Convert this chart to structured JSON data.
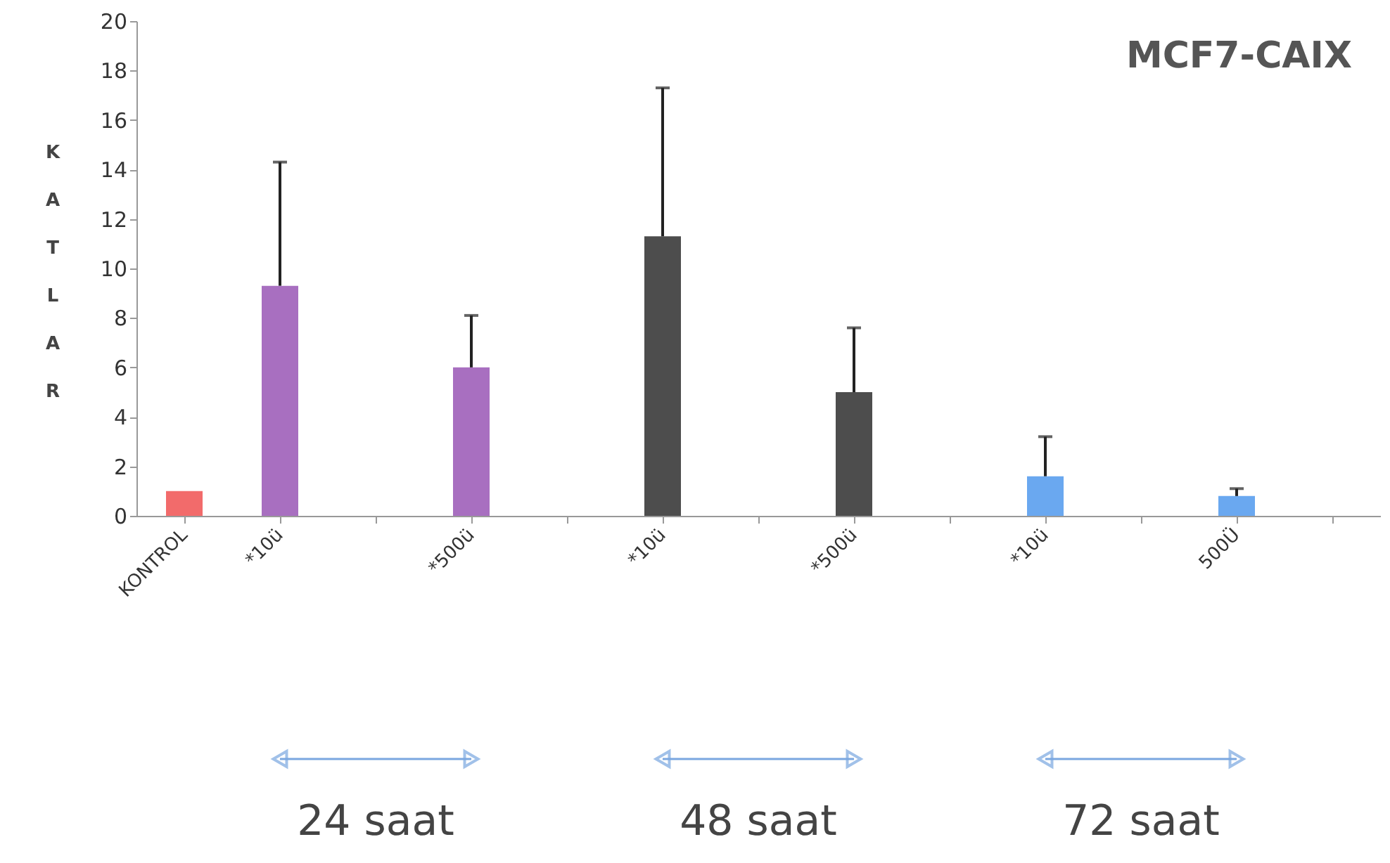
{
  "chart_data": {
    "type": "bar",
    "title": "MCF7-CAIX",
    "ylabel": "KATLAR",
    "categories": [
      "KONTROL",
      "*10ü",
      null,
      "*500ü",
      null,
      "*10ü",
      null,
      "*500ü",
      null,
      "*10ü",
      null,
      "500Ü",
      null
    ],
    "values": [
      1.0,
      9.3,
      null,
      6.0,
      null,
      11.3,
      null,
      5.0,
      null,
      1.6,
      null,
      0.8,
      null
    ],
    "errors": [
      null,
      [
        9.3,
        14.3
      ],
      null,
      [
        6.0,
        8.1
      ],
      null,
      [
        11.3,
        17.3
      ],
      null,
      [
        5.0,
        7.6
      ],
      null,
      [
        1.6,
        3.2
      ],
      null,
      [
        0.8,
        1.1
      ],
      null
    ],
    "colors": [
      "#f26b6b",
      "#a86fc0",
      "#a86fc0",
      "#a86fc0",
      "#4d4d4d",
      "#4d4d4d",
      "#4d4d4d",
      "#4d4d4d",
      "#6aa8f0",
      "#6aa8f0",
      "#6aa8f0",
      "#6aa8f0",
      "#6aa8f0"
    ],
    "ylim": [
      0,
      20
    ],
    "yticks": [
      0,
      2,
      4,
      6,
      8,
      10,
      12,
      14,
      16,
      18,
      20
    ],
    "grid": false,
    "annotations": [
      "24 saat",
      "48 saat",
      "72 saat"
    ]
  }
}
